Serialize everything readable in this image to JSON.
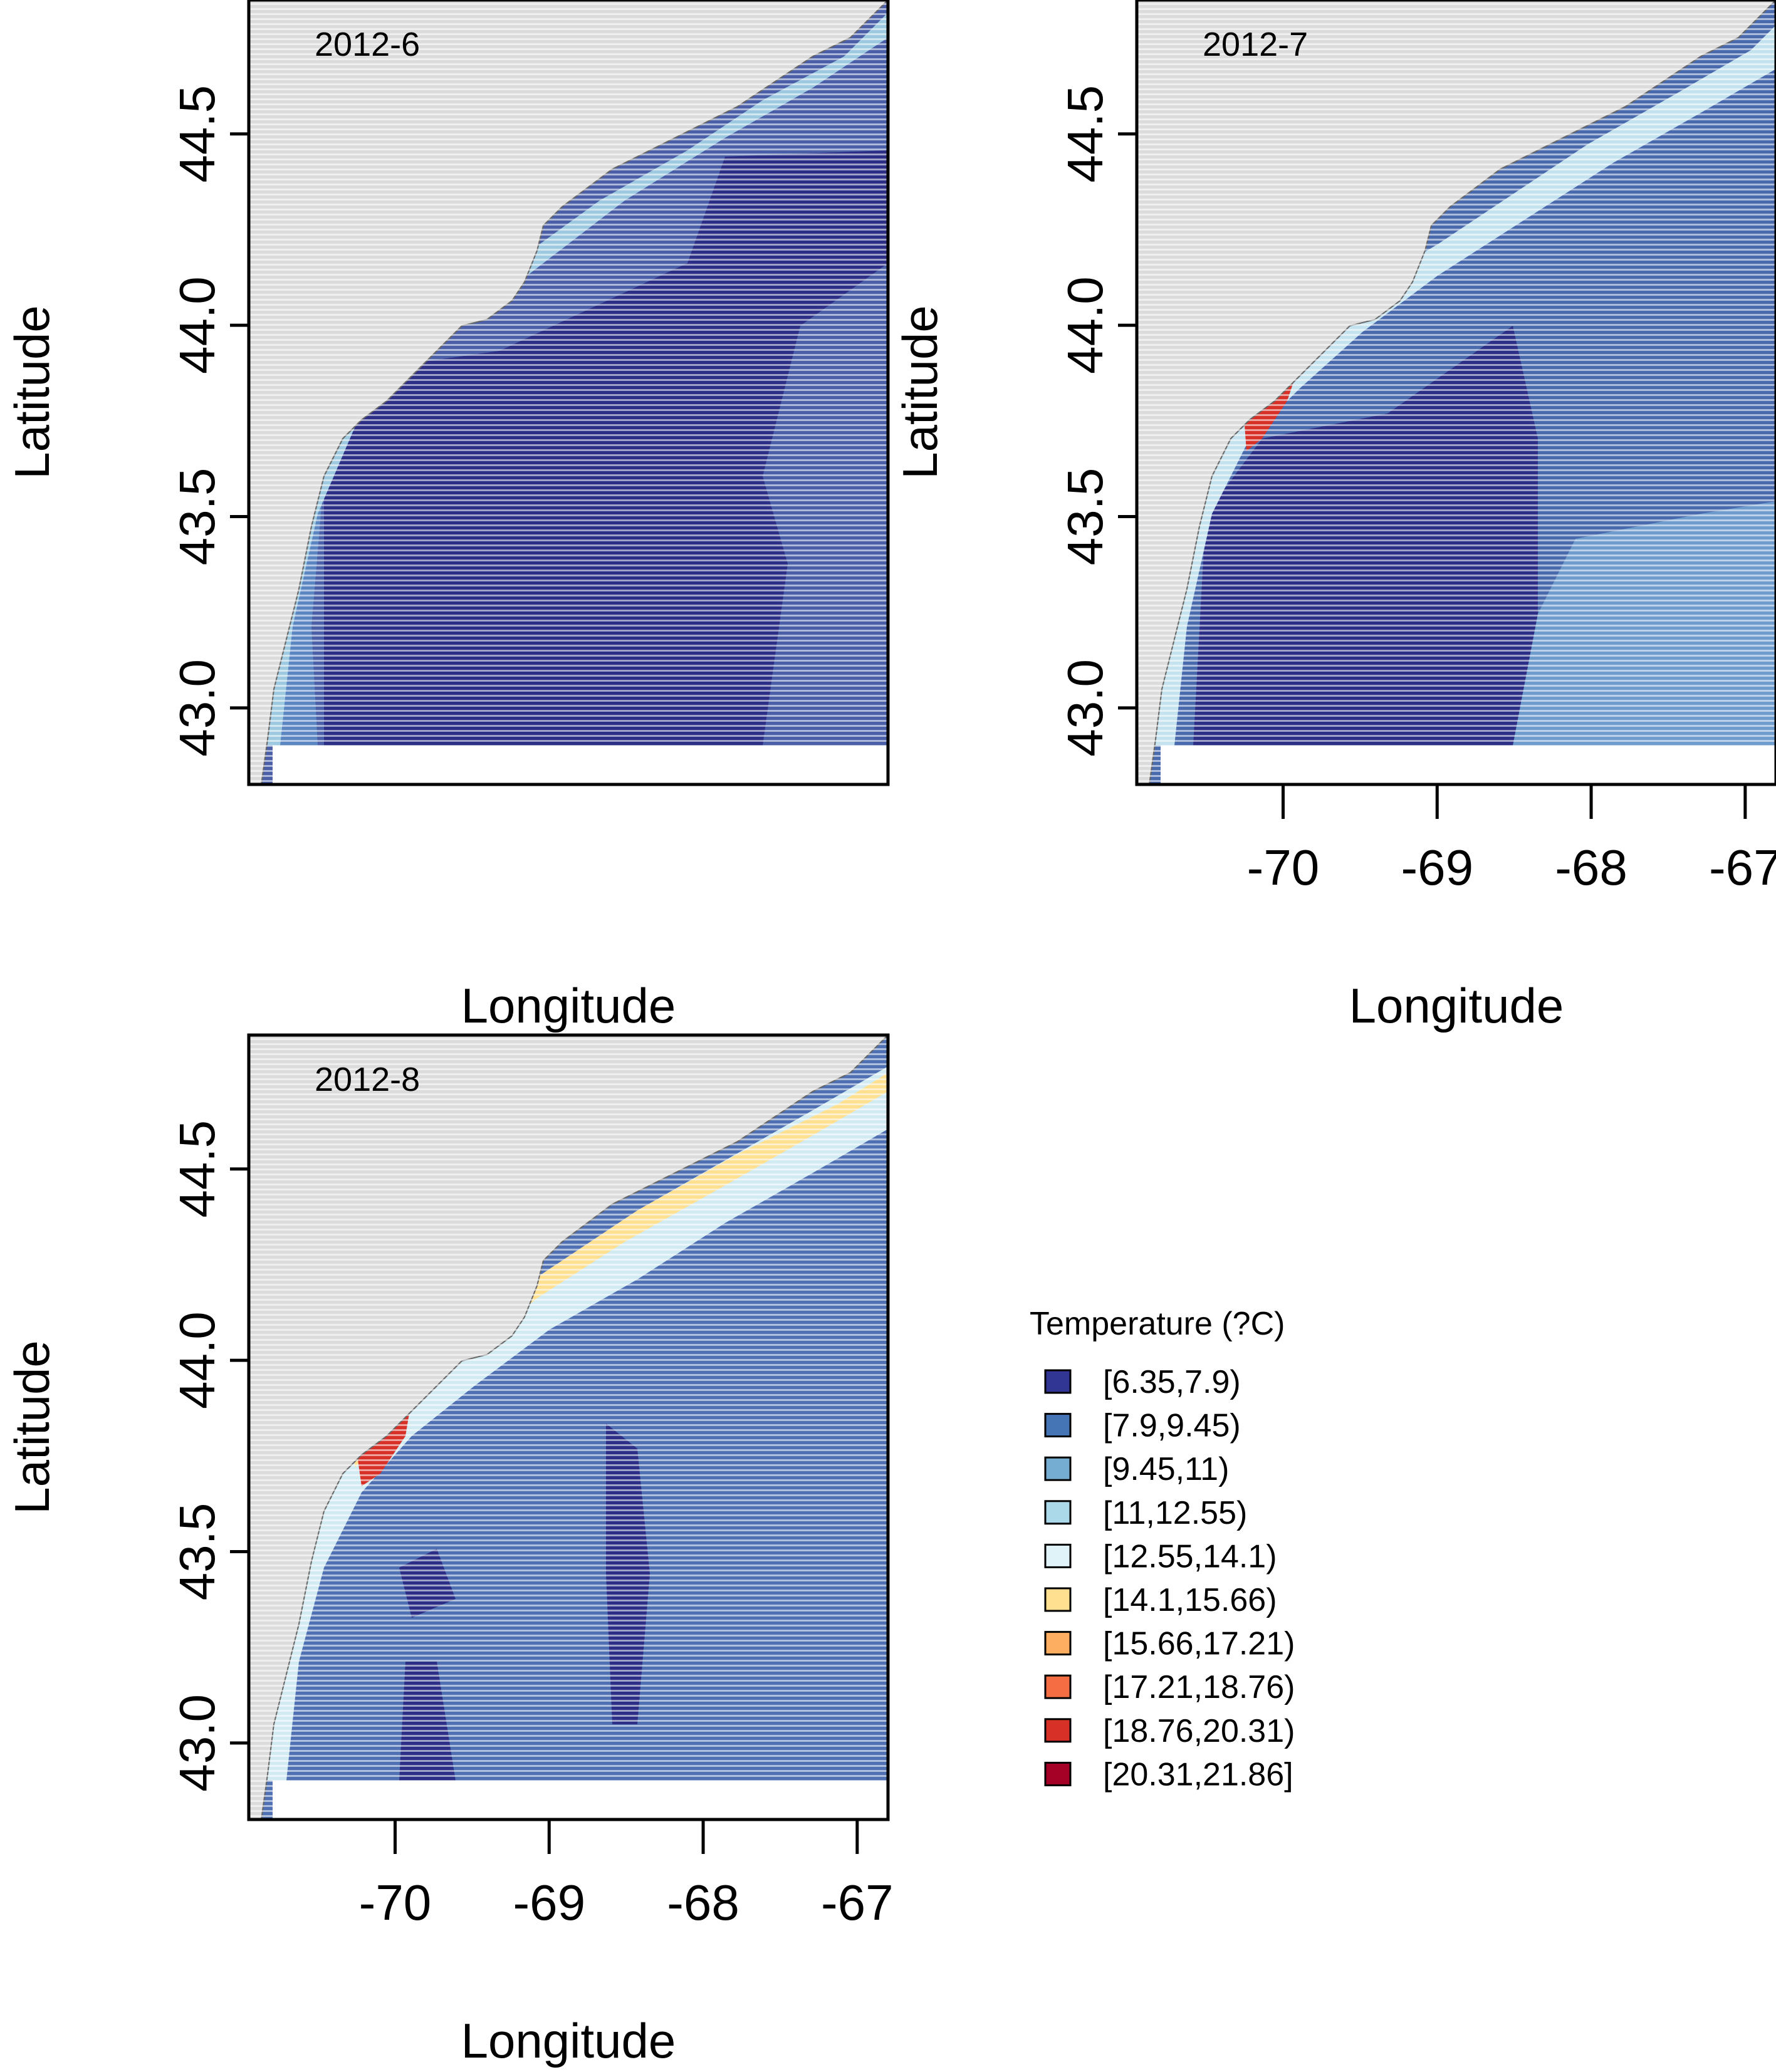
{
  "figure": {
    "panels": [
      {
        "title": "2012-6",
        "xlabel": "Longitude",
        "ylabel": "Latitude",
        "show_x_ticks": false
      },
      {
        "title": "2012-7",
        "xlabel": "Longitude",
        "ylabel": "Latitude",
        "show_x_ticks": true
      },
      {
        "title": "2012-8",
        "xlabel": "Longitude",
        "ylabel": "Latitude",
        "show_x_ticks": true
      }
    ],
    "lon_range": [
      -70.95,
      -66.8
    ],
    "lat_range": [
      42.8,
      44.85
    ],
    "x_ticks": [
      "-70",
      "-69",
      "-68",
      "-67"
    ],
    "y_ticks": [
      "43.0",
      "43.5",
      "44.0",
      "44.5"
    ],
    "land_color": "#dcdcdc"
  },
  "legend": {
    "title": "Temperature (?C)",
    "items": [
      {
        "label": "[6.35,7.9)",
        "color": "#313695"
      },
      {
        "label": "[7.9,9.45)",
        "color": "#4575b4"
      },
      {
        "label": "[9.45,11)",
        "color": "#74add1"
      },
      {
        "label": "[11,12.55)",
        "color": "#abd9e9"
      },
      {
        "label": "[12.55,14.1)",
        "color": "#e0f3f8"
      },
      {
        "label": "[14.1,15.66)",
        "color": "#fee090"
      },
      {
        "label": "[15.66,17.21)",
        "color": "#fdae61"
      },
      {
        "label": "[17.21,18.76)",
        "color": "#f46d43"
      },
      {
        "label": "[18.76,20.31)",
        "color": "#d73027"
      },
      {
        "label": "[20.31,21.86]",
        "color": "#a50026"
      }
    ]
  }
}
